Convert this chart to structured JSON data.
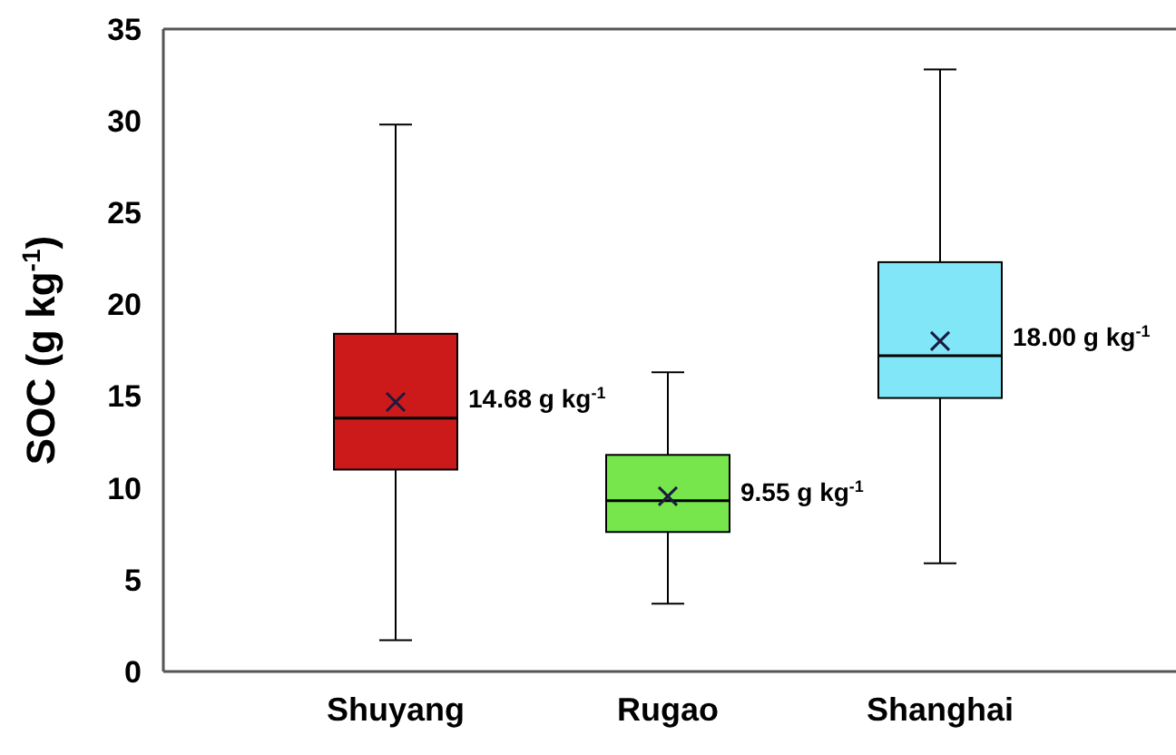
{
  "chart_data": {
    "type": "box",
    "ylabel": "SOC (g kg$^{-1}$)",
    "categories": [
      "Shuyang",
      "Rugao",
      "Shanghai"
    ],
    "colors": [
      "#cc1a1a",
      "#77e64c",
      "#80e6f8"
    ],
    "boxes": [
      {
        "low": 1.7,
        "q1": 11,
        "median": 13.8,
        "q3": 18.4,
        "high": 29.8,
        "mean": 14.68
      },
      {
        "low": 3.7,
        "q1": 7.6,
        "median": 9.3,
        "q3": 11.8,
        "high": 16.3,
        "mean": 9.55
      },
      {
        "low": 5.9,
        "q1": 14.9,
        "median": 17.2,
        "q3": 22.3,
        "high": 32.8,
        "mean": 18
      }
    ],
    "ylim": [
      0,
      35
    ],
    "yticks": [
      0,
      5,
      10,
      15,
      20,
      25,
      30,
      35
    ],
    "grid": false,
    "annotations": [
      "14.68 g kg$^{-1}$",
      "9.55 g kg$^{-1}$",
      "18.00 g kg$^{-1}$"
    ]
  }
}
